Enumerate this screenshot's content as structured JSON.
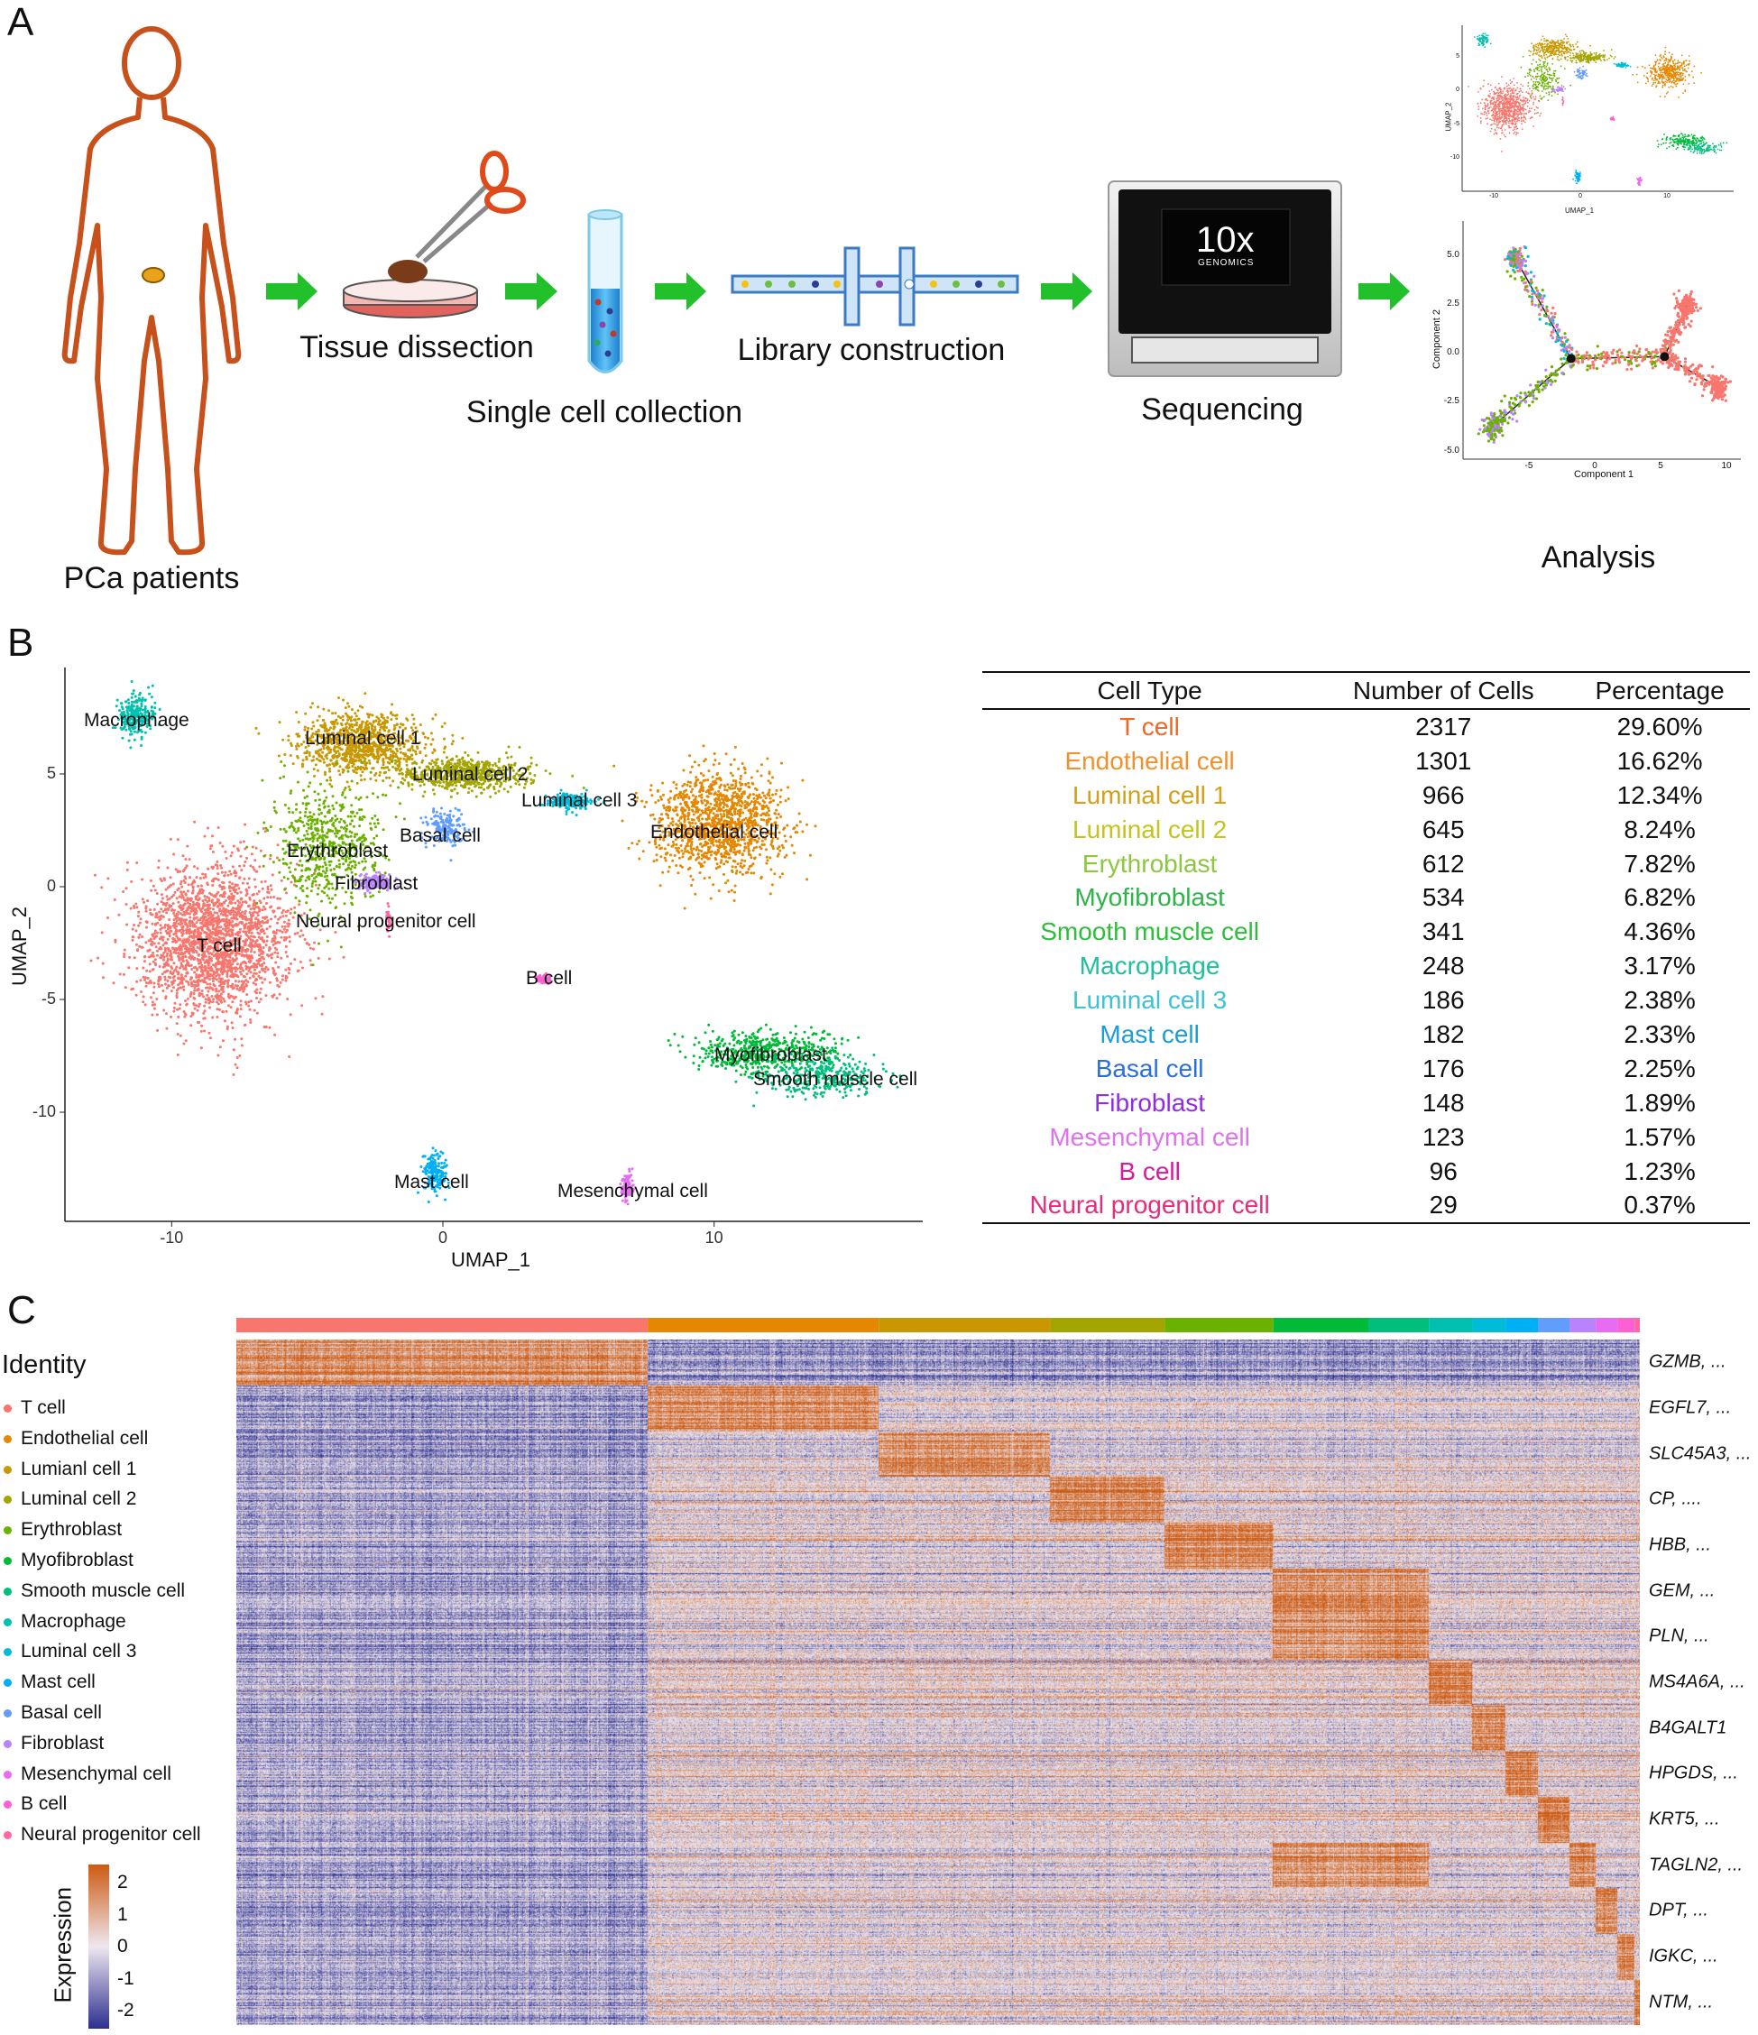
{
  "panels": {
    "a": "A",
    "b": "B",
    "c": "C"
  },
  "workflow": {
    "patients_label": "PCa patients",
    "steps": [
      "Tissue dissection",
      "Single cell collection",
      "Library construction",
      "Sequencing",
      "Analysis"
    ],
    "logo_text": "10x",
    "logo_subtext": "GENOMICS"
  },
  "colors": {
    "arrow": "#22C02A",
    "body_outline": "#C8501A",
    "heat_low": "#2B2F8F",
    "heat_mid": "#EFE7EF",
    "heat_high": "#CC5A12"
  },
  "chart_data": [
    {
      "type": "scatter",
      "panel": "B",
      "xlabel": "UMAP_1",
      "ylabel": "UMAP_2",
      "xticks": [
        "-10",
        "0",
        "10"
      ],
      "yticks": [
        "5",
        "0",
        "-5",
        "-10"
      ],
      "xlim": [
        -14,
        17
      ],
      "ylim": [
        -14.5,
        9.5
      ],
      "grid": false,
      "clusters": [
        {
          "name": "T cell",
          "center": [
            -8.5,
            -2.4
          ],
          "spread": [
            1.4,
            1.7
          ],
          "color": "#F8766D"
        },
        {
          "name": "Endothelial cell",
          "center": [
            10.2,
            2.8
          ],
          "spread": [
            1.2,
            1.1
          ],
          "color": "#E58700"
        },
        {
          "name": "Luminal cell 1",
          "center": [
            -3.0,
            6.3
          ],
          "spread": [
            1.2,
            0.7
          ],
          "color": "#C99800"
        },
        {
          "name": "Luminal cell 2",
          "center": [
            0.9,
            5.0
          ],
          "spread": [
            1.1,
            0.35
          ],
          "color": "#A3A500"
        },
        {
          "name": "Erythroblast",
          "center": [
            -4.2,
            1.8
          ],
          "spread": [
            1.0,
            1.4
          ],
          "color": "#6BB100"
        },
        {
          "name": "Myofibroblast",
          "center": [
            11.9,
            -7.3
          ],
          "spread": [
            1.3,
            0.45
          ],
          "color": "#00BA38"
        },
        {
          "name": "Smooth muscle cell",
          "center": [
            14.0,
            -8.4
          ],
          "spread": [
            1.1,
            0.45
          ],
          "color": "#00BF7D"
        },
        {
          "name": "Macrophage",
          "center": [
            -11.3,
            7.6
          ],
          "spread": [
            0.35,
            0.45
          ],
          "color": "#00C0AF"
        },
        {
          "name": "Luminal cell 3",
          "center": [
            4.7,
            3.8
          ],
          "spread": [
            0.4,
            0.18
          ],
          "color": "#00BCD8"
        },
        {
          "name": "Mast cell",
          "center": [
            -0.3,
            -12.7
          ],
          "spread": [
            0.2,
            0.45
          ],
          "color": "#00B0F6"
        },
        {
          "name": "Basal cell",
          "center": [
            0.1,
            2.6
          ],
          "spread": [
            0.35,
            0.4
          ],
          "color": "#619CFF"
        },
        {
          "name": "Fibroblast",
          "center": [
            -2.5,
            0.2
          ],
          "spread": [
            0.35,
            0.18
          ],
          "color": "#B983FF"
        },
        {
          "name": "Mesenchymal cell",
          "center": [
            6.8,
            -13.3
          ],
          "spread": [
            0.1,
            0.3
          ],
          "color": "#E76BF3"
        },
        {
          "name": "B cell",
          "center": [
            3.7,
            -4.1
          ],
          "spread": [
            0.12,
            0.1
          ],
          "color": "#FD61D1"
        },
        {
          "name": "Neural progenitor cell",
          "center": [
            -2.0,
            -1.5
          ],
          "spread": [
            0.06,
            0.3
          ],
          "color": "#FF67A4"
        }
      ]
    },
    {
      "type": "table",
      "panel": "B",
      "columns": [
        "Cell Type",
        "Number of Cells",
        "Percentage"
      ],
      "rows": [
        {
          "type": "T cell",
          "count": "2317",
          "pct": "29.60%",
          "color": "#F26722"
        },
        {
          "type": "Endothelial cell",
          "count": "1301",
          "pct": "16.62%",
          "color": "#F0922B"
        },
        {
          "type": "Luminal cell 1",
          "count": "966",
          "pct": "12.34%",
          "color": "#D4A017"
        },
        {
          "type": "Luminal cell 2",
          "count": "645",
          "pct": "8.24%",
          "color": "#C4C41C"
        },
        {
          "type": "Erythroblast",
          "count": "612",
          "pct": "7.82%",
          "color": "#8DC63F"
        },
        {
          "type": "Myofibroblast",
          "count": "534",
          "pct": "6.82%",
          "color": "#2DB34A"
        },
        {
          "type": "Smooth muscle cell",
          "count": "341",
          "pct": "4.36%",
          "color": "#2DBE3A"
        },
        {
          "type": "Macrophage",
          "count": "248",
          "pct": "3.17%",
          "color": "#1DBF9F"
        },
        {
          "type": "Luminal cell 3",
          "count": "186",
          "pct": "2.38%",
          "color": "#3EC1D3"
        },
        {
          "type": "Mast cell",
          "count": "182",
          "pct": "2.33%",
          "color": "#1B9DD9"
        },
        {
          "type": "Basal cell",
          "count": "176",
          "pct": "2.25%",
          "color": "#2B6FD8"
        },
        {
          "type": "Fibroblast",
          "count": "148",
          "pct": "1.89%",
          "color": "#8E2DE2"
        },
        {
          "type": "Mesenchymal cell",
          "count": "123",
          "pct": "1.57%",
          "color": "#E070F0"
        },
        {
          "type": "B cell",
          "count": "96",
          "pct": "1.23%",
          "color": "#D61A9A"
        },
        {
          "type": "Neural progenitor cell",
          "count": "29",
          "pct": "0.37%",
          "color": "#EC2A7A"
        }
      ]
    },
    {
      "type": "heatmap",
      "panel": "C",
      "legend_title": "Identity",
      "legend_items": [
        "T cell",
        "Endothelial cell",
        "Lumianl cell 1",
        "Luminal cell 2",
        "Erythroblast",
        "Myofibroblast",
        "Smooth muscle cell",
        "Macrophage",
        "Luminal cell 3",
        "Mast cell",
        "Basal cell",
        "Fibroblast",
        "Mesenchymal cell",
        "B cell",
        "Neural progenitor cell"
      ],
      "gene_labels": [
        "GZMB, ...",
        "EGFL7, ...",
        "SLC45A3, ...",
        "CP, ....",
        "HBB, ...",
        "GEM, ...",
        "PLN, ...",
        "MS4A6A, ...",
        "B4GALT1",
        "HPGDS, ...",
        "KRT5, ...",
        "TAGLN2, ...",
        "DPT, ...",
        "IGKC, ...",
        "NTM, ..."
      ],
      "colorbar_title": "Expression",
      "colorbar_ticks": [
        "2",
        "1",
        "0",
        "-1",
        "-2"
      ],
      "value_range": [
        -2.5,
        2.5
      ]
    },
    {
      "type": "scatter",
      "panel": "A-umap-thumbnail",
      "xlabel": "UMAP_1",
      "ylabel": "UMAP_2",
      "xticks": [
        "-10",
        "0",
        "10"
      ],
      "yticks": [
        "5",
        "0",
        "-5",
        "-10"
      ]
    },
    {
      "type": "scatter",
      "panel": "A-trajectory",
      "xlabel": "Component 1",
      "ylabel": "Component 2",
      "xticks": [
        "-5",
        "0",
        "5",
        "10"
      ],
      "yticks": [
        "5.0",
        "2.5",
        "0.0",
        "-2.5",
        "-5.0"
      ],
      "branch_points": [
        {
          "label": "1",
          "x": -1.8,
          "y": -0.3
        },
        {
          "label": "2",
          "x": 5.3,
          "y": -0.2
        }
      ],
      "branch_ends": [
        [
          -6.0,
          4.8
        ],
        [
          -7.8,
          -3.8
        ],
        [
          9.5,
          -1.8
        ],
        [
          7.0,
          2.4
        ]
      ]
    }
  ]
}
